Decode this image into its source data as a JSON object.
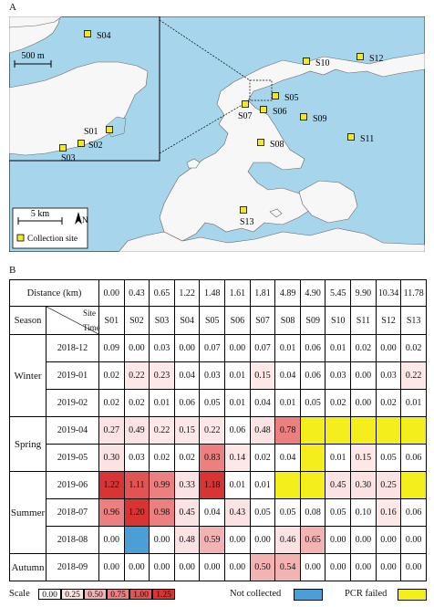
{
  "panels": {
    "a": "A",
    "b": "B"
  },
  "map": {
    "inset_scale": "500 m",
    "main_scale": "5 km",
    "north": "N",
    "legend_label": "Collection site",
    "colors": {
      "sea": "#a7d5ec",
      "land": "#f7f7f7",
      "site": "#f4e91c"
    },
    "sites": [
      "S04",
      "S01",
      "S02",
      "S03",
      "S05",
      "S06",
      "S07",
      "S08",
      "S09",
      "S10",
      "S11",
      "S12",
      "S13"
    ]
  },
  "table": {
    "distance_label": "Distance (km)",
    "distances": [
      "0.00",
      "0.43",
      "0.65",
      "1.22",
      "1.48",
      "1.61",
      "1.81",
      "4.89",
      "4.90",
      "5.45",
      "9.90",
      "10.34",
      "11.78"
    ],
    "season_label": "Season",
    "site_label": "Site",
    "time_label": "Time",
    "sites": [
      "S01",
      "S02",
      "S03",
      "S04",
      "S05",
      "S06",
      "S07",
      "S08",
      "S09",
      "S10",
      "S11",
      "S12",
      "S13"
    ],
    "seasons": [
      {
        "name": "Winter",
        "rows": [
          {
            "time": "2018-12",
            "values": [
              "0.09",
              "0.00",
              "0.03",
              "0.00",
              "0.07",
              "0.00",
              "0.07",
              "0.01",
              "0.06",
              "0.01",
              "0.02",
              "0.00",
              "0.02"
            ]
          },
          {
            "time": "2019-01",
            "values": [
              "0.02",
              "0.22",
              "0.23",
              "0.04",
              "0.03",
              "0.01",
              "0.15",
              "0.04",
              "0.06",
              "0.03",
              "0.00",
              "0.03",
              "0.22"
            ]
          },
          {
            "time": "2019-02",
            "values": [
              "0.02",
              "0.02",
              "0.01",
              "0.06",
              "0.05",
              "0.01",
              "0.04",
              "0.01",
              "0.05",
              "0.02",
              "0.00",
              "0.02",
              "0.01"
            ]
          }
        ]
      },
      {
        "name": "Spring",
        "rows": [
          {
            "time": "2019-04",
            "values": [
              "0.27",
              "0.49",
              "0.22",
              "0.15",
              "0.22",
              "0.06",
              "0.48",
              "0.78",
              "PCR",
              "PCR",
              "PCR",
              "PCR",
              "PCR"
            ]
          },
          {
            "time": "2019-05",
            "values": [
              "0.30",
              "0.03",
              "0.02",
              "0.02",
              "0.83",
              "0.14",
              "0.02",
              "0.04",
              "PCR",
              "0.01",
              "0.15",
              "0.05",
              "0.06"
            ]
          }
        ]
      },
      {
        "name": "Summer",
        "rows": [
          {
            "time": "2019-06",
            "values": [
              "1.22",
              "1.11",
              "0.99",
              "0.33",
              "1.18",
              "0.01",
              "0.01",
              "PCR",
              "PCR",
              "0.45",
              "0.30",
              "0.25",
              "PCR"
            ]
          },
          {
            "time": "2018-07",
            "values": [
              "0.96",
              "1.20",
              "0.98",
              "0.45",
              "0.04",
              "0.43",
              "0.05",
              "0.05",
              "0.08",
              "0.05",
              "0.10",
              "0.16",
              "0.06"
            ]
          },
          {
            "time": "2018-08",
            "values": [
              "0.00",
              "NC",
              "0.00",
              "0.48",
              "0.59",
              "0.00",
              "0.00",
              "0.46",
              "0.65",
              "0.00",
              "0.00",
              "0.00",
              "0.00"
            ]
          }
        ]
      },
      {
        "name": "Autumn",
        "rows": [
          {
            "time": "2018-09",
            "values": [
              "0.00",
              "0.00",
              "0.00",
              "0.00",
              "0.00",
              "0.00",
              "0.50",
              "0.54",
              "0.00",
              "0.00",
              "0.00",
              "0.00",
              "0.00"
            ]
          }
        ]
      }
    ],
    "colors": {
      "not_collected": "#4a9fd6",
      "pcr_failed": "#f4ef1c"
    }
  },
  "legend": {
    "scale_label": "Scale",
    "scale_values": [
      "0.00",
      "0.25",
      "0.50",
      "0.75",
      "1.00",
      "1.25"
    ],
    "scale_colors": [
      "#ffffff",
      "#fbe3e3",
      "#f4b3b3",
      "#ec8080",
      "#e25353",
      "#d83434"
    ],
    "not_collected": "Not collected",
    "pcr_failed": "PCR failed"
  }
}
